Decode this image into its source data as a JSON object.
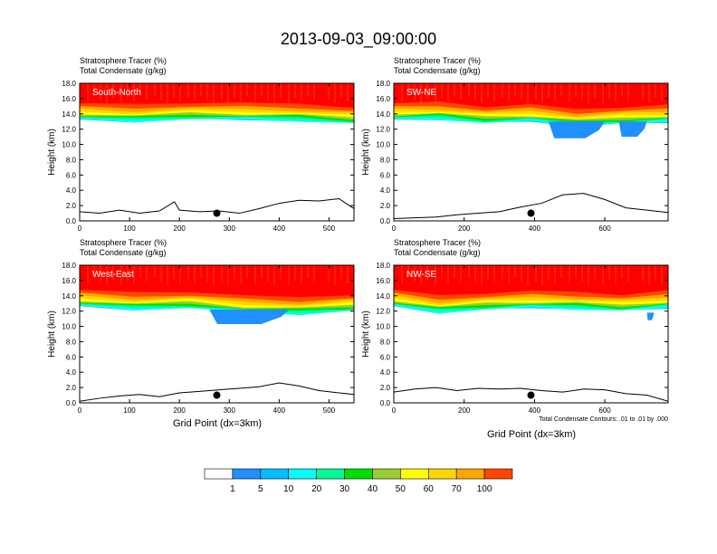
{
  "figure": {
    "title": "2013-09-03_09:00:00",
    "y_label": "Height (km)",
    "x_label": "Grid Point (dx=3km)",
    "contour_note": "Total Condensate Contours: .01 to .01 by .000",
    "field1": {
      "name": "Stratosphere Tracer",
      "units": "(%)"
    },
    "field2": {
      "name": "Total Condensate",
      "units": "(g/kg)"
    }
  },
  "colorbar": {
    "levels": [
      "1",
      "5",
      "10",
      "20",
      "30",
      "40",
      "50",
      "60",
      "70",
      "100"
    ],
    "colors": [
      "#ffffff",
      "#1e90ff",
      "#00bfff",
      "#00ffff",
      "#00fa9a",
      "#00e000",
      "#9acd32",
      "#ffff00",
      "#ffd700",
      "#ffa500",
      "#ff4500",
      "#ff0000"
    ]
  },
  "chart_data": [
    {
      "type": "heatmap",
      "panel": "South-North",
      "label": "South-North",
      "xlim": [
        0,
        550
      ],
      "ylim": [
        0,
        18
      ],
      "x_ticks": [
        0,
        100,
        200,
        300,
        400,
        500
      ],
      "y_ticks": [
        "0.0",
        "2.0",
        "4.0",
        "6.0",
        "8.0",
        "10.0",
        "12.0",
        "14.0",
        "16.0",
        "18.0"
      ],
      "tracer_top_km": 18,
      "tracer_base_km": [
        13.2,
        13.0,
        13.3,
        13.2,
        13.1,
        12.7
      ],
      "blue_patches": [],
      "terrain_x": [
        0,
        40,
        80,
        120,
        160,
        190,
        200,
        240,
        280,
        320,
        360,
        400,
        440,
        480,
        520,
        550
      ],
      "terrain_km": [
        1.2,
        1.0,
        1.4,
        1.0,
        1.3,
        2.5,
        1.4,
        1.2,
        1.3,
        1.0,
        1.6,
        2.3,
        2.7,
        2.6,
        2.9,
        1.6
      ],
      "marker_x": 275,
      "marker_km": 1.0
    },
    {
      "type": "heatmap",
      "panel": "SW-NE",
      "label": "SW-NE",
      "xlim": [
        0,
        780
      ],
      "ylim": [
        0,
        18
      ],
      "x_ticks": [
        0,
        200,
        400,
        600
      ],
      "y_ticks": [
        "0.0",
        "2.0",
        "4.0",
        "6.0",
        "8.0",
        "10.0",
        "12.0",
        "14.0",
        "16.0",
        "18.0"
      ],
      "tracer_top_km": 18,
      "tracer_base_km": [
        13.2,
        13.3,
        12.8,
        13.0,
        12.4,
        12.7,
        12.9
      ],
      "blue_patches": [
        {
          "x": [
            440,
            600
          ],
          "km": [
            10.8,
            13.0
          ]
        },
        {
          "x": [
            640,
            720
          ],
          "km": [
            11.0,
            13.0
          ]
        }
      ],
      "terrain_x": [
        0,
        60,
        120,
        180,
        240,
        300,
        360,
        420,
        480,
        540,
        600,
        660,
        720,
        780
      ],
      "terrain_km": [
        0.3,
        0.4,
        0.5,
        0.8,
        1.0,
        1.2,
        1.8,
        2.3,
        3.4,
        3.6,
        2.8,
        1.7,
        1.4,
        1.1
      ],
      "marker_x": 390,
      "marker_km": 1.0
    },
    {
      "type": "heatmap",
      "panel": "West-East",
      "label": "West-East",
      "xlim": [
        0,
        550
      ],
      "ylim": [
        0,
        18
      ],
      "x_ticks": [
        0,
        100,
        200,
        300,
        400,
        500
      ],
      "y_ticks": [
        "0.0",
        "2.0",
        "4.0",
        "6.0",
        "8.0",
        "10.0",
        "12.0",
        "14.0",
        "16.0",
        "18.0"
      ],
      "tracer_top_km": 18,
      "tracer_base_km": [
        12.6,
        12.2,
        12.4,
        11.8,
        11.6,
        12.0
      ],
      "blue_patches": [
        {
          "x": [
            260,
            420
          ],
          "km": [
            10.3,
            12.2
          ]
        }
      ],
      "terrain_x": [
        0,
        40,
        80,
        120,
        160,
        200,
        240,
        280,
        320,
        360,
        400,
        440,
        480,
        520,
        550
      ],
      "terrain_km": [
        0.2,
        0.6,
        0.9,
        1.1,
        0.8,
        1.3,
        1.5,
        1.7,
        1.9,
        2.1,
        2.6,
        2.2,
        1.6,
        1.3,
        1.1
      ],
      "marker_x": 275,
      "marker_km": 1.0
    },
    {
      "type": "heatmap",
      "panel": "NW-SE",
      "label": "NW-SE",
      "xlim": [
        0,
        780
      ],
      "ylim": [
        0,
        18
      ],
      "x_ticks": [
        0,
        200,
        400,
        600
      ],
      "y_ticks": [
        "0.0",
        "2.0",
        "4.0",
        "6.0",
        "8.0",
        "10.0",
        "12.0",
        "14.0",
        "16.0",
        "18.0"
      ],
      "tracer_top_km": 18,
      "tracer_base_km": [
        12.6,
        11.8,
        12.2,
        12.4,
        12.3,
        12.0,
        12.4
      ],
      "blue_patches": [
        {
          "x": [
            720,
            740
          ],
          "km": [
            10.8,
            11.8
          ]
        }
      ],
      "terrain_x": [
        0,
        60,
        120,
        180,
        240,
        300,
        360,
        420,
        480,
        540,
        600,
        660,
        720,
        780
      ],
      "terrain_km": [
        1.4,
        1.8,
        2.0,
        1.6,
        1.9,
        1.8,
        1.9,
        1.6,
        1.4,
        1.8,
        1.7,
        1.2,
        1.0,
        0.2
      ],
      "marker_x": 390,
      "marker_km": 1.0
    }
  ]
}
